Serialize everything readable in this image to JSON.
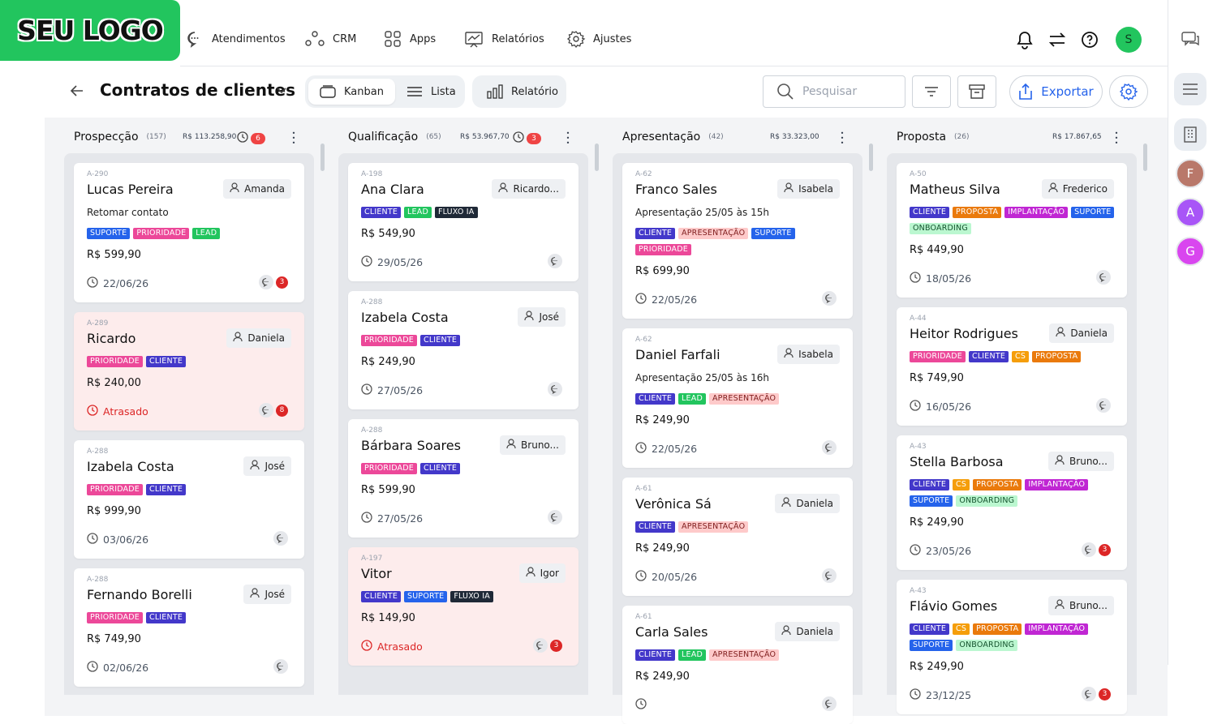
{
  "brand": {
    "logo_text": "SEU LOGO",
    "accent": "#22c55e"
  },
  "nav": {
    "items": [
      {
        "label": "Atendimentos",
        "icon": "chat-bubble-icon"
      },
      {
        "label": "CRM",
        "icon": "nodes-icon"
      },
      {
        "label": "Apps",
        "icon": "apps-grid-icon"
      },
      {
        "label": "Relatórios",
        "icon": "report-chart-icon"
      },
      {
        "label": "Ajustes",
        "icon": "gear-icon"
      }
    ],
    "user_initial": "S"
  },
  "rail": {
    "avatars": [
      {
        "initial": "F",
        "color": "#b9786a"
      },
      {
        "initial": "A",
        "color": "#a855f7"
      },
      {
        "initial": "G",
        "color": "#d946ef"
      }
    ]
  },
  "toolbar": {
    "title": "Contratos de clientes",
    "view_kanban": "Kanban",
    "view_lista": "Lista",
    "relatorio": "Relatório",
    "search_placeholder": "Pesquisar",
    "export": "Exportar"
  },
  "columns": [
    {
      "name": "Prospecção",
      "count": "(157)",
      "value": "R$ 113.258,90",
      "alert": "6",
      "cards": [
        {
          "id": "A-290",
          "name": "Lucas Pereira",
          "owner": "Amanda",
          "note": "Retomar contato",
          "tags": [
            [
              "SUPORTE",
              "suporte"
            ],
            [
              "PRIORIDADE",
              "prioridade"
            ],
            [
              "LEAD",
              "lead"
            ]
          ],
          "price": "R$ 599,90",
          "date": "22/06/26",
          "chat": "3"
        },
        {
          "id": "A-289",
          "name": "Ricardo",
          "owner": "Daniela",
          "tags": [
            [
              "PRIORIDADE",
              "prioridade"
            ],
            [
              "CLIENTE",
              "cliente"
            ]
          ],
          "price": "R$ 240,00",
          "date": "Atrasado",
          "late": true,
          "chat": "8"
        },
        {
          "id": "A-288",
          "name": "Izabela Costa",
          "owner": "José",
          "tags": [
            [
              "PRIORIDADE",
              "prioridade"
            ],
            [
              "CLIENTE",
              "cliente"
            ]
          ],
          "price": "R$ 999,90",
          "date": "03/06/26"
        },
        {
          "id": "A-288",
          "name": "Fernando Borelli",
          "owner": "José",
          "tags": [
            [
              "PRIORIDADE",
              "prioridade"
            ],
            [
              "CLIENTE",
              "cliente"
            ]
          ],
          "price": "R$ 749,90",
          "date": "02/06/26"
        }
      ]
    },
    {
      "name": "Qualificação",
      "count": "(65)",
      "value": "R$ 53.967,70",
      "alert": "3",
      "cards": [
        {
          "id": "A-198",
          "name": "Ana Clara",
          "owner": "Ricardo...",
          "tags": [
            [
              "CLIENTE",
              "cliente"
            ],
            [
              "LEAD",
              "lead"
            ],
            [
              "FLUXO IA",
              "fluxo"
            ]
          ],
          "price": "R$ 549,90",
          "date": "29/05/26"
        },
        {
          "id": "A-288",
          "name": "Izabela Costa",
          "owner": "José",
          "tags": [
            [
              "PRIORIDADE",
              "prioridade"
            ],
            [
              "CLIENTE",
              "cliente"
            ]
          ],
          "price": "R$ 249,90",
          "date": "27/05/26"
        },
        {
          "id": "A-288",
          "name": "Bárbara Soares",
          "owner": "Bruno...",
          "tags": [
            [
              "PRIORIDADE",
              "prioridade"
            ],
            [
              "CLIENTE",
              "cliente"
            ]
          ],
          "price": "R$ 599,90",
          "date": "27/05/26"
        },
        {
          "id": "A-197",
          "name": "Vitor",
          "owner": "Igor",
          "tags": [
            [
              "CLIENTE",
              "cliente"
            ],
            [
              "SUPORTE",
              "suporte"
            ],
            [
              "FLUXO IA",
              "fluxo"
            ]
          ],
          "price": "R$ 149,90",
          "date": "Atrasado",
          "late": true,
          "chat": "3"
        }
      ]
    },
    {
      "name": "Apresentação",
      "count": "(42)",
      "value": "R$ 33.323,00",
      "cards": [
        {
          "id": "A-62",
          "name": "Franco Sales",
          "owner": "Isabela",
          "note": "Apresentação 25/05 às 15h",
          "tags": [
            [
              "CLIENTE",
              "cliente"
            ],
            [
              "APRESENTAÇÃO",
              "apresentacao"
            ],
            [
              "SUPORTE",
              "suporte"
            ],
            [
              "PRIORIDADE",
              "prioridade"
            ]
          ],
          "price": "R$ 699,90",
          "date": "22/05/26"
        },
        {
          "id": "A-62",
          "name": "Daniel Farfali",
          "owner": "Isabela",
          "note": "Apresentação 25/05 às 16h",
          "tags": [
            [
              "CLIENTE",
              "cliente"
            ],
            [
              "LEAD",
              "lead"
            ],
            [
              "APRESENTAÇÃO",
              "apresentacao"
            ]
          ],
          "price": "R$ 249,90",
          "date": "22/05/26"
        },
        {
          "id": "A-61",
          "name": "Verônica Sá",
          "owner": "Daniela",
          "tags": [
            [
              "CLIENTE",
              "cliente"
            ],
            [
              "APRESENTAÇÃO",
              "apresentacao"
            ]
          ],
          "price": "R$ 249,90",
          "date": "20/05/26"
        },
        {
          "id": "A-61",
          "name": "Carla Sales",
          "owner": "Daniela",
          "tags": [
            [
              "CLIENTE",
              "cliente"
            ],
            [
              "LEAD",
              "lead"
            ],
            [
              "APRESENTAÇÃO",
              "apresentacao"
            ]
          ],
          "price": "R$ 249,90",
          "date": ""
        }
      ]
    },
    {
      "name": "Proposta",
      "count": "(26)",
      "value": "R$ 17.867,65",
      "cards": [
        {
          "id": "A-50",
          "name": "Matheus Silva",
          "owner": "Frederico",
          "tags": [
            [
              "CLIENTE",
              "cliente"
            ],
            [
              "PROPOSTA",
              "proposta"
            ],
            [
              "IMPLANTAÇÃO",
              "implantacao"
            ],
            [
              "SUPORTE",
              "suporte"
            ],
            [
              "ONBOARDING",
              "onboarding"
            ]
          ],
          "price": "R$ 449,90",
          "date": "18/05/26"
        },
        {
          "id": "A-44",
          "name": "Heitor Rodrigues",
          "owner": "Daniela",
          "tags": [
            [
              "PRIORIDADE",
              "prioridade"
            ],
            [
              "CLIENTE",
              "cliente"
            ],
            [
              "CS",
              "cs"
            ],
            [
              "PROPOSTA",
              "proposta"
            ]
          ],
          "price": "R$ 749,90",
          "date": "16/05/26"
        },
        {
          "id": "A-43",
          "name": "Stella Barbosa",
          "owner": "Bruno...",
          "tags": [
            [
              "CLIENTE",
              "cliente"
            ],
            [
              "CS",
              "cs"
            ],
            [
              "PROPOSTA",
              "proposta"
            ],
            [
              "IMPLANTAÇÃO",
              "implantacao"
            ],
            [
              "SUPORTE",
              "suporte"
            ],
            [
              "ONBOARDING",
              "onboarding"
            ]
          ],
          "price": "R$ 249,90",
          "date": "23/05/26",
          "chat": "3"
        },
        {
          "id": "A-43",
          "name": "Flávio Gomes",
          "owner": "Bruno...",
          "tags": [
            [
              "CLIENTE",
              "cliente"
            ],
            [
              "CS",
              "cs"
            ],
            [
              "PROPOSTA",
              "proposta"
            ],
            [
              "IMPLANTAÇÃO",
              "implantacao"
            ],
            [
              "SUPORTE",
              "suporte"
            ],
            [
              "ONBOARDING",
              "onboarding"
            ]
          ],
          "price": "R$ 249,90",
          "date": "23/12/25",
          "chat": "3"
        }
      ]
    }
  ]
}
